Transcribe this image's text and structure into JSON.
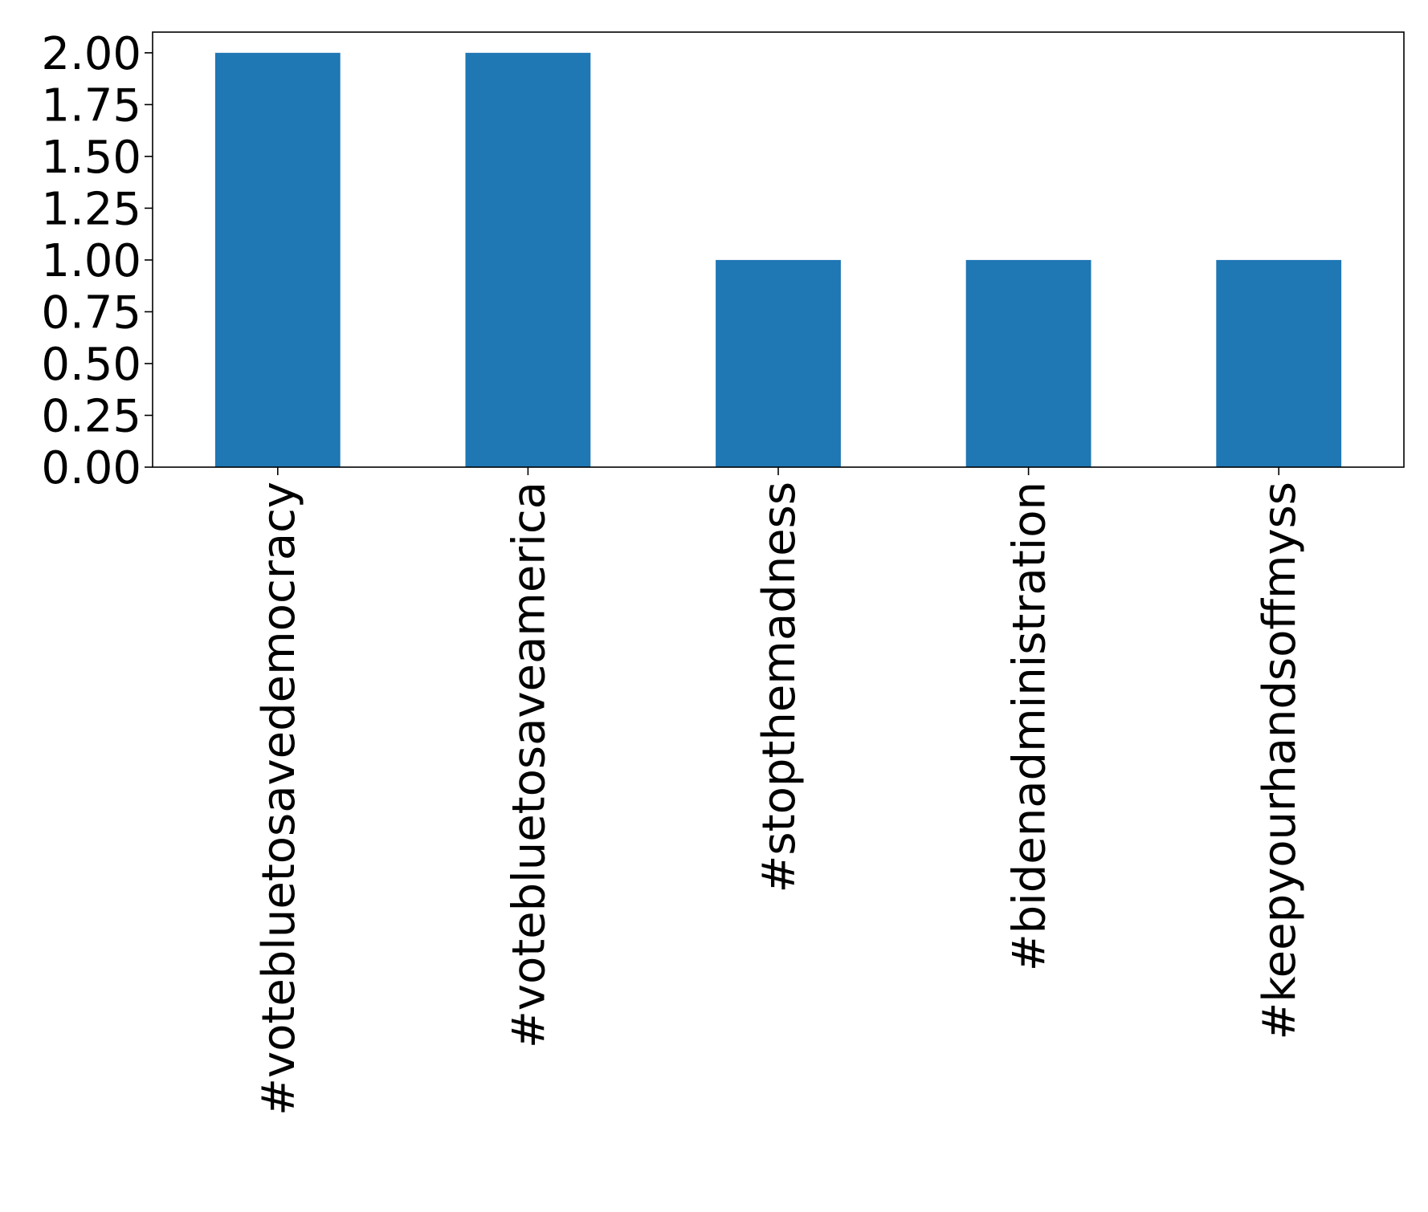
{
  "chart_data": {
    "type": "bar",
    "title": "",
    "xlabel": "",
    "ylabel": "",
    "categories": [
      "#votebluetosavedemocracy",
      "#votebluetosaveamerica",
      "#stopthemadness",
      "#bidenadministration",
      "#keepyourhandsoffmyss"
    ],
    "values": [
      2,
      2,
      1,
      1,
      1
    ],
    "ylim": [
      0,
      2.1
    ],
    "yticks": [
      "0.00",
      "0.25",
      "0.50",
      "0.75",
      "1.00",
      "1.25",
      "1.50",
      "1.75",
      "2.00"
    ],
    "grid": false,
    "legend": "none",
    "bar_color": "#1f77b4"
  }
}
